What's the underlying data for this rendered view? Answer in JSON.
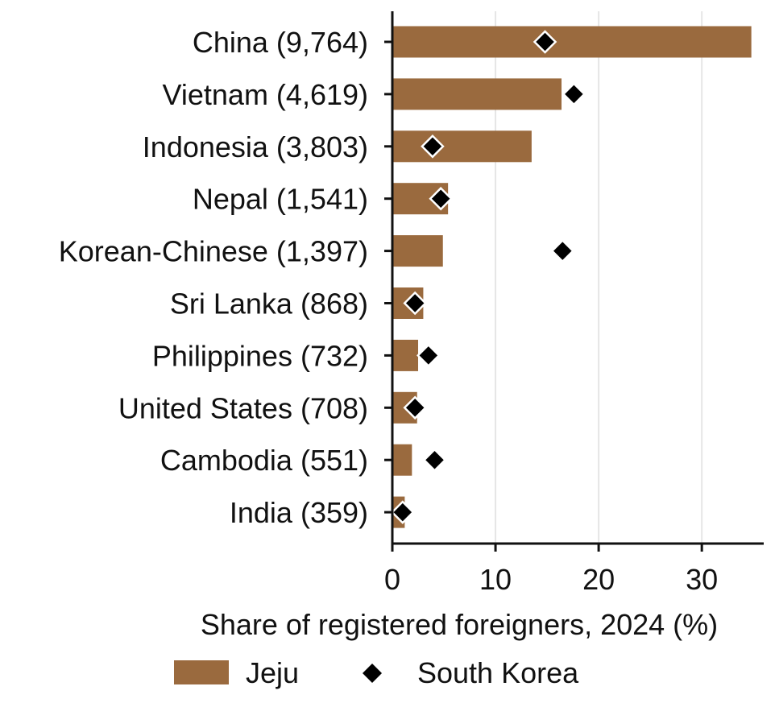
{
  "chart_data": {
    "type": "bar",
    "orientation": "horizontal",
    "categories": [
      "China (9,764)",
      "Vietnam (4,619)",
      "Indonesia (3,803)",
      "Nepal (1,541)",
      "Korean-Chinese (1,397)",
      "Sri Lanka (868)",
      "Philippines (732)",
      "United States (708)",
      "Cambodia (551)",
      "India (359)"
    ],
    "series": [
      {
        "name": "Jeju",
        "mark": "bar",
        "color": "#9a6a3e",
        "values": [
          34.8,
          16.4,
          13.5,
          5.4,
          4.9,
          3.0,
          2.5,
          2.4,
          1.9,
          1.2
        ]
      },
      {
        "name": "South Korea",
        "mark": "diamond",
        "color": "#000000",
        "values": [
          14.8,
          17.6,
          3.9,
          4.7,
          16.5,
          2.2,
          3.5,
          2.2,
          4.1,
          1.0
        ]
      }
    ],
    "xlabel": "Share of registered foreigners, 2024 (%)",
    "ylabel": "",
    "xlim": [
      0,
      36
    ],
    "xticks": [
      0,
      10,
      20,
      30
    ],
    "grid": "vertical",
    "legend": "bottom"
  }
}
